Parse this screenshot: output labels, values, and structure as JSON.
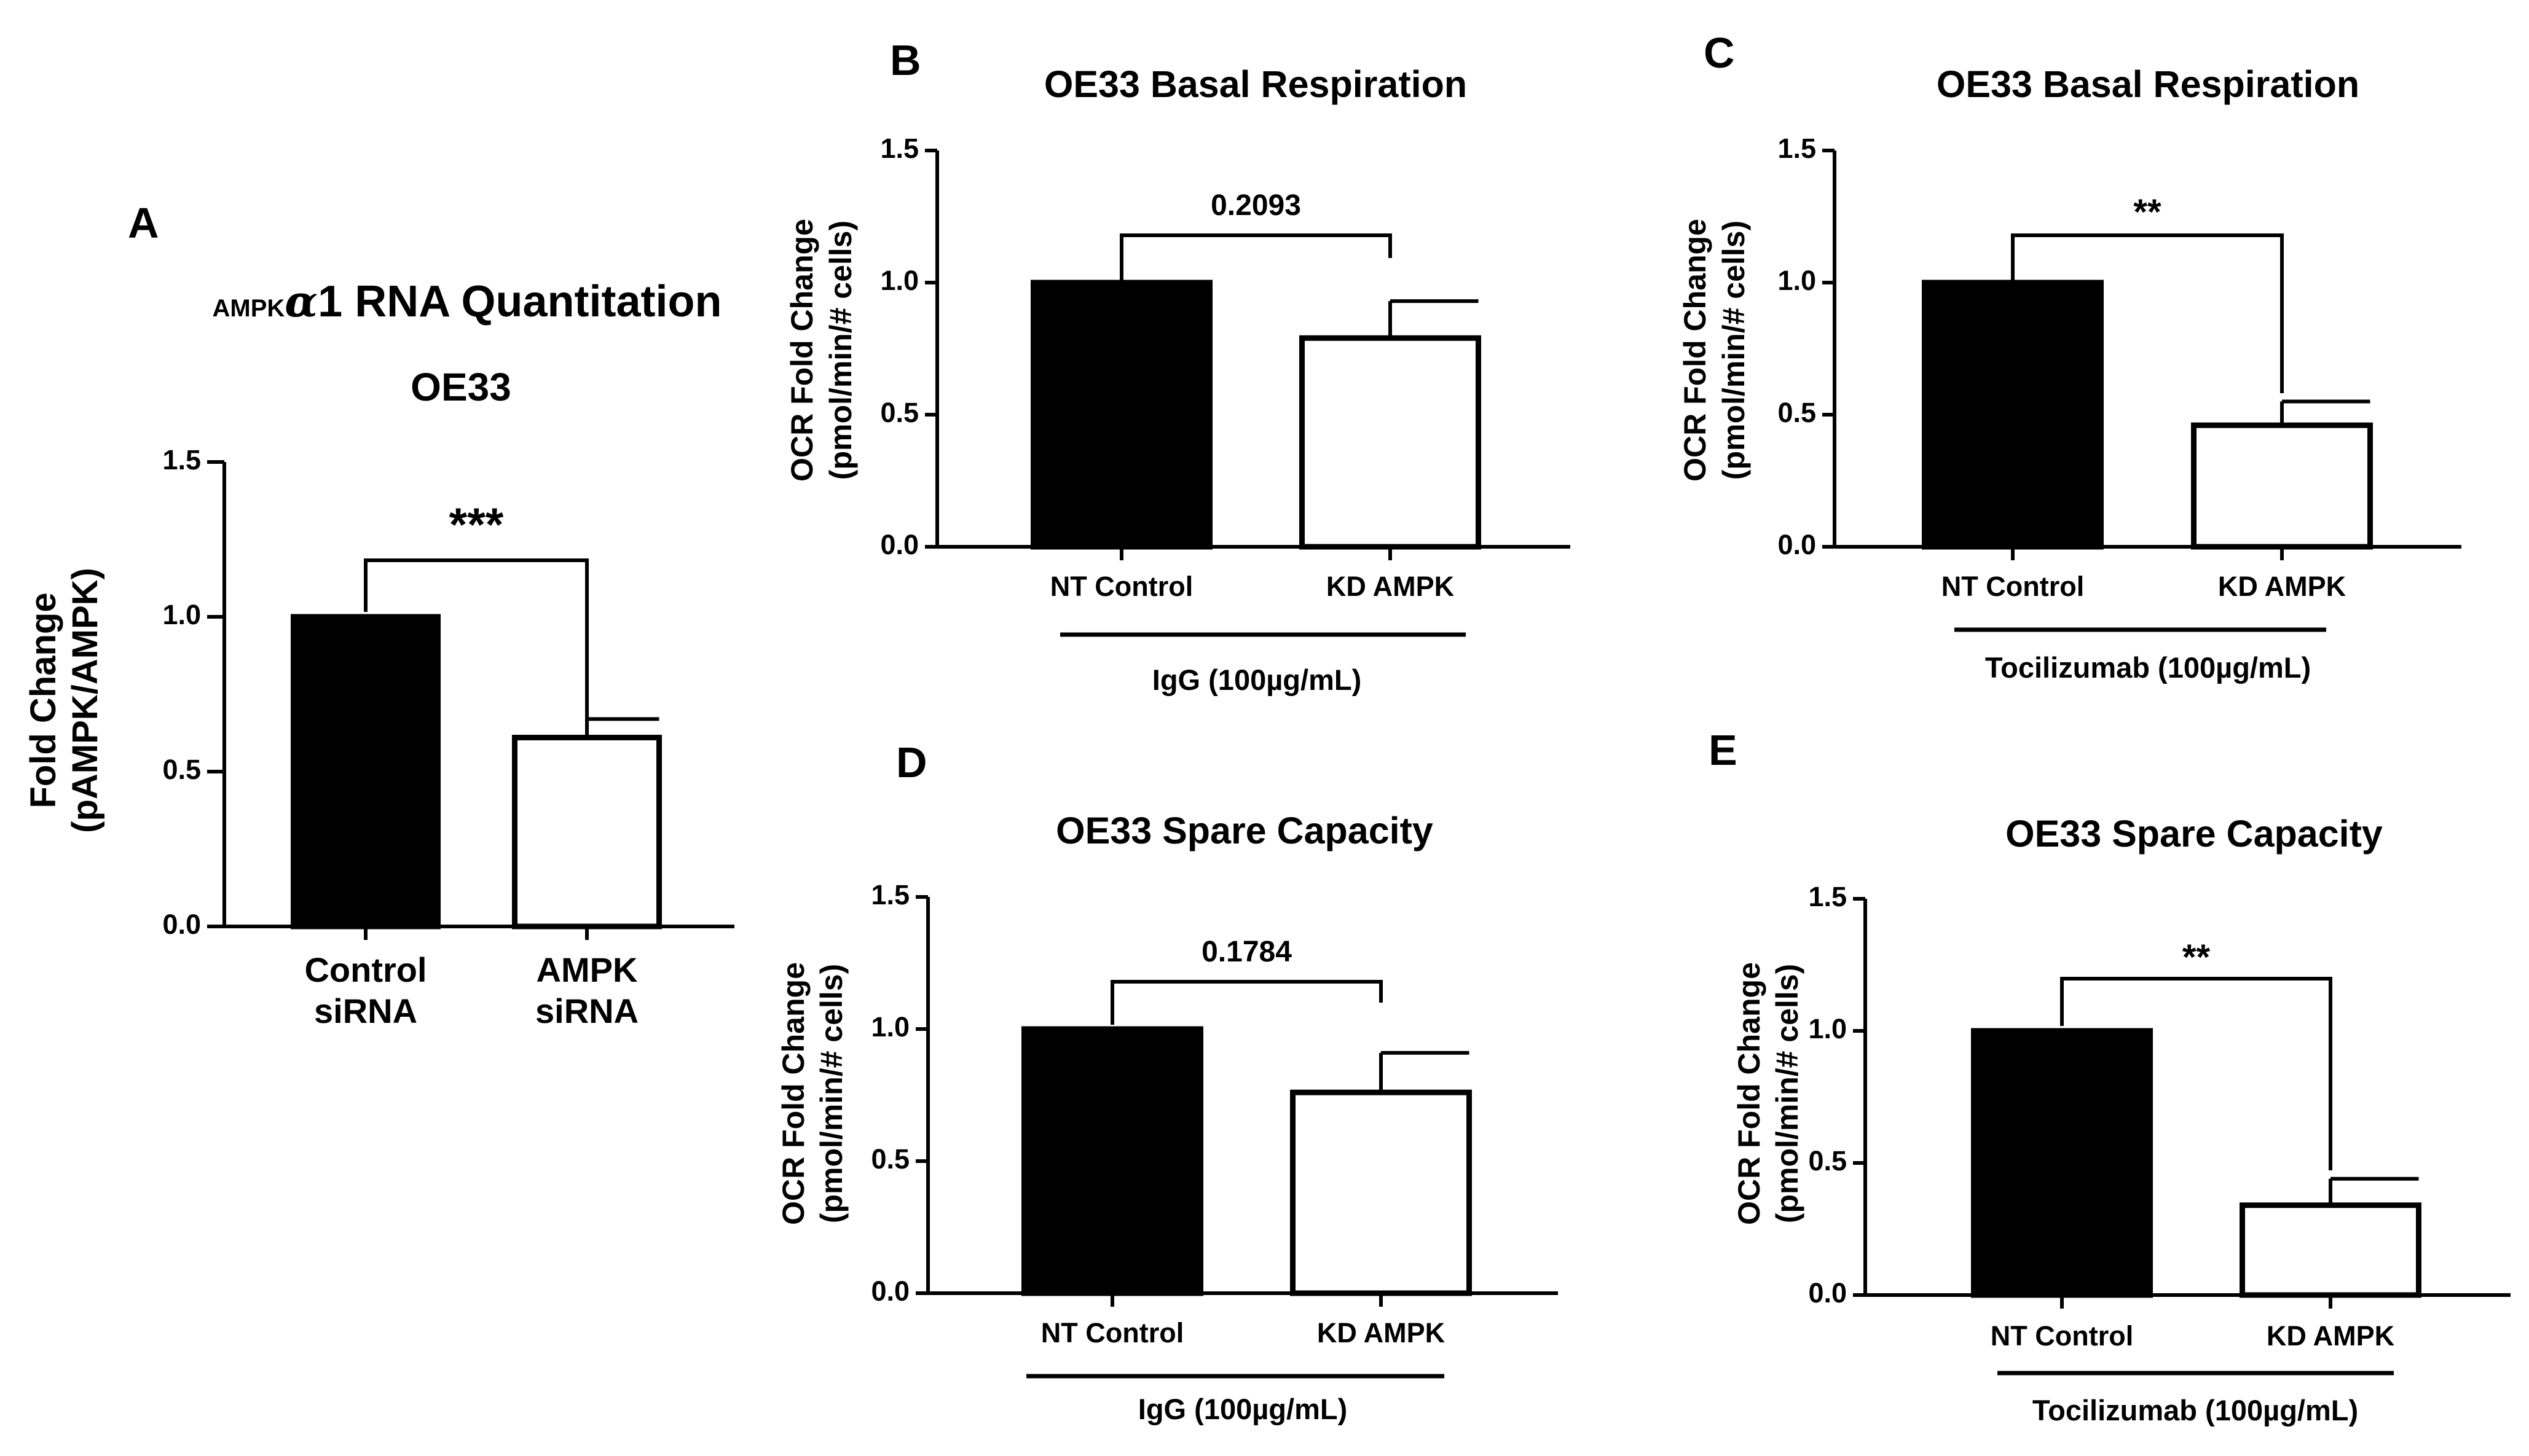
{
  "chart_data": [
    {
      "panel": "A",
      "type": "bar",
      "title_prefix": "AMPK",
      "title_greek": "α",
      "title_rest": "1 RNA Quantitation",
      "subtitle": "OE33",
      "ylabel_line1": "Fold Change",
      "ylabel_line2": "(pAMPK/AMPK)",
      "categories": [
        [
          "Control",
          "siRNA"
        ],
        [
          "AMPK",
          "siRNA"
        ]
      ],
      "values": [
        1.0,
        0.61
      ],
      "errors": [
        0,
        0.06
      ],
      "fills": [
        "#000000",
        "#ffffff"
      ],
      "ylim": [
        0,
        1.5
      ],
      "yticks": [
        "0.0",
        "0.5",
        "1.0",
        "1.5"
      ],
      "significance": "***",
      "group_label": ""
    },
    {
      "panel": "B",
      "type": "bar",
      "title": "OE33 Basal Respiration",
      "ylabel_line1": "OCR Fold Change",
      "ylabel_line2": "(pmol/min/# cells)",
      "categories": [
        "NT Control",
        "KD AMPK"
      ],
      "values": [
        1.0,
        0.79
      ],
      "errors": [
        0,
        0.14
      ],
      "fills": [
        "#000000",
        "#ffffff"
      ],
      "ylim": [
        0,
        1.5
      ],
      "yticks": [
        "0.0",
        "0.5",
        "1.0",
        "1.5"
      ],
      "significance": "0.2093",
      "group_label": "IgG (100µg/mL)"
    },
    {
      "panel": "C",
      "type": "bar",
      "title": "OE33 Basal Respiration",
      "ylabel_line1": "OCR Fold Change",
      "ylabel_line2": "(pmol/min/# cells)",
      "categories": [
        "NT Control",
        "KD AMPK"
      ],
      "values": [
        1.0,
        0.46
      ],
      "errors": [
        0,
        0.09
      ],
      "fills": [
        "#000000",
        "#ffffff"
      ],
      "ylim": [
        0,
        1.5
      ],
      "yticks": [
        "0.0",
        "0.5",
        "1.0",
        "1.5"
      ],
      "significance": "**",
      "group_label": "Tocilizumab (100µg/mL)"
    },
    {
      "panel": "D",
      "type": "bar",
      "title": "OE33 Spare Capacity",
      "ylabel_line1": "OCR Fold Change",
      "ylabel_line2": "(pmol/min/# cells)",
      "categories": [
        "NT Control",
        "KD AMPK"
      ],
      "values": [
        1.0,
        0.76
      ],
      "errors": [
        0,
        0.15
      ],
      "fills": [
        "#000000",
        "#ffffff"
      ],
      "ylim": [
        0,
        1.5
      ],
      "yticks": [
        "0.0",
        "0.5",
        "1.0",
        "1.5"
      ],
      "significance": "0.1784",
      "group_label": "IgG (100µg/mL)"
    },
    {
      "panel": "E",
      "type": "bar",
      "title": "OE33 Spare Capacity",
      "ylabel_line1": "OCR Fold Change",
      "ylabel_line2": "(pmol/min/# cells)",
      "categories": [
        "NT Control",
        "KD AMPK"
      ],
      "values": [
        1.0,
        0.34
      ],
      "errors": [
        0,
        0.1
      ],
      "fills": [
        "#000000",
        "#ffffff"
      ],
      "ylim": [
        0,
        1.5
      ],
      "yticks": [
        "0.0",
        "0.5",
        "1.0",
        "1.5"
      ],
      "significance": "**",
      "group_label": "Tocilizumab (100µg/mL)"
    }
  ]
}
